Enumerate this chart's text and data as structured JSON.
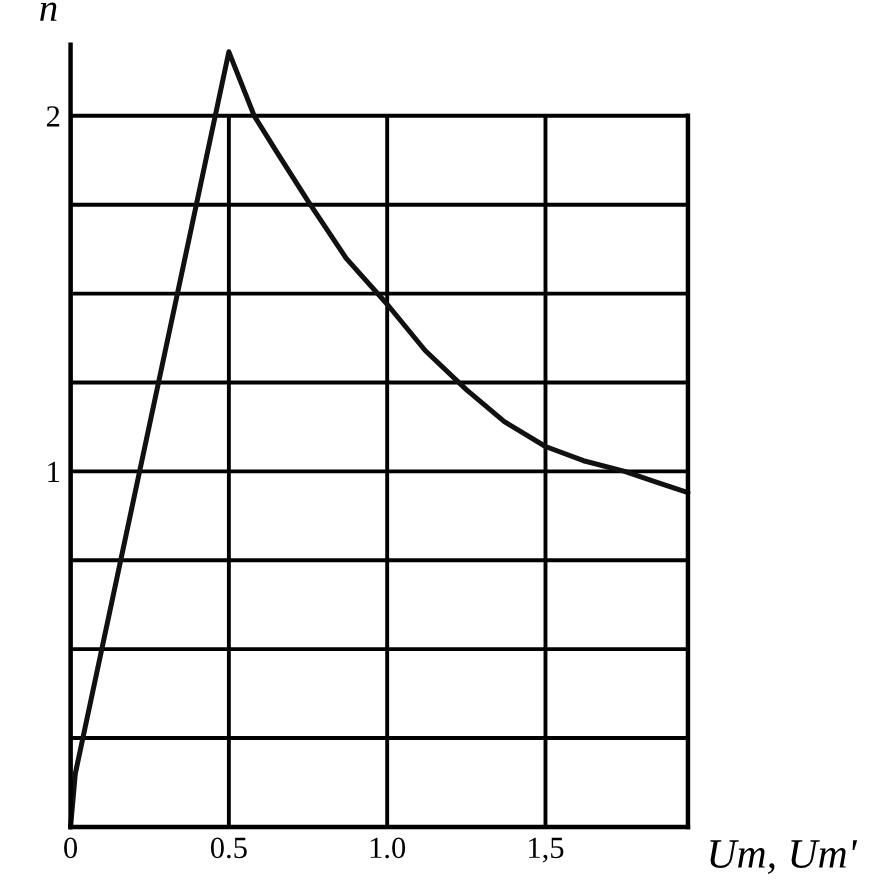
{
  "chart_data": {
    "type": "line",
    "xlabel": "Um, Um'",
    "ylabel": "n",
    "series": [
      {
        "color": "#111111",
        "x": [
          0,
          0.015,
          0.5,
          0.58,
          0.65,
          0.75,
          0.87,
          1.0,
          1.12,
          1.25,
          1.37,
          1.5,
          1.62,
          1.75,
          1.85,
          1.95
        ],
        "values": [
          0,
          0.15,
          2.18,
          2.0,
          1.9,
          1.76,
          1.6,
          1.47,
          1.34,
          1.23,
          1.14,
          1.07,
          1.03,
          1.0,
          0.97,
          0.94
        ]
      }
    ],
    "xlim": [
      0,
      1.95
    ],
    "ylim": [
      0,
      2.2
    ],
    "xticks": [
      0,
      0.5,
      {
        "value": 1.0,
        "label": "1.0"
      },
      {
        "value": 1.5,
        "label": "1,5"
      }
    ],
    "yticks": [
      {
        "value": 0.25,
        "label": null
      },
      {
        "value": 0.5,
        "label": null
      },
      {
        "value": 0.75,
        "label": null
      },
      1,
      {
        "value": 1.25,
        "label": null
      },
      {
        "value": 1.5,
        "label": null
      },
      {
        "value": 1.75,
        "label": null
      },
      2
    ],
    "grid": true,
    "marker": "none",
    "line_style": "solid"
  }
}
